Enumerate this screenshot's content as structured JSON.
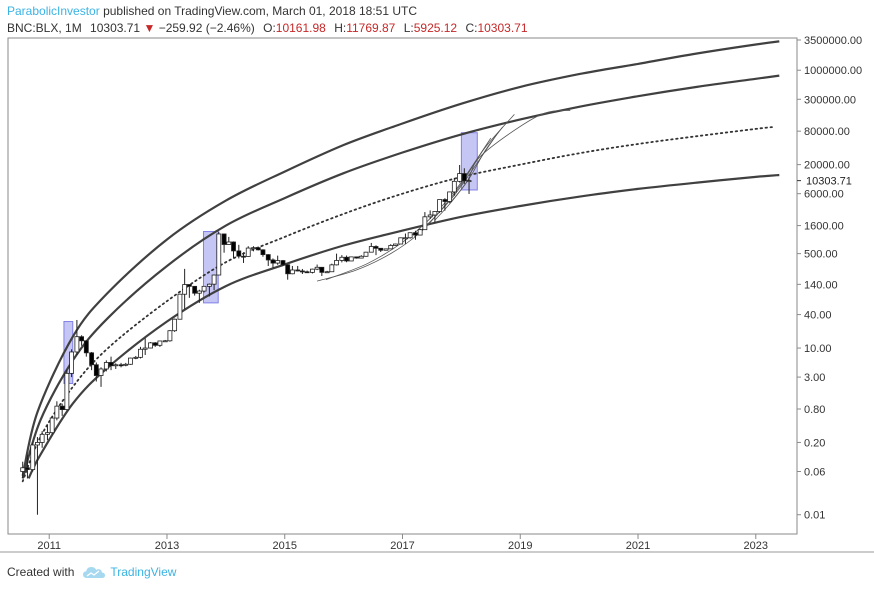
{
  "header": {
    "author": "ParabolicInvestor",
    "published_text": "published on TradingView.com, March 01, 2018 18:51 UTC",
    "symbol": "BNC:BLX, 1M",
    "last_price": "10303.71",
    "change_arrow": "▼",
    "change": "−259.92 (−2.46%)",
    "open_label": "O:",
    "open_value": "10161.98",
    "high_label": "H:",
    "high_value": "11769.87",
    "low_label": "L:",
    "low_value": "5925.12",
    "close_label": "C:",
    "close_value": "10303.71"
  },
  "footer": {
    "created_with": "Created with",
    "brand": "TradingView"
  },
  "colors": {
    "up": "#ffffff",
    "down": "#000000",
    "red_text": "#c62828",
    "brand": "#3bb3e4",
    "band": "#8080e8",
    "curve": "#404040"
  },
  "chart_data": {
    "type": "candlestick",
    "scale": "log",
    "x_axis": {
      "labels": [
        "2011",
        "2013",
        "2015",
        "2017",
        "2019",
        "2021",
        "2023"
      ],
      "range": [
        2010.3,
        2023.7
      ]
    },
    "y_axis": {
      "labels": [
        "3500000.00",
        "1000000.00",
        "300000.00",
        "80000.00",
        "20000.00",
        "6000.00",
        "1600.00",
        "500.00",
        "140.00",
        "40.00",
        "10.00",
        "3.00",
        "0.80",
        "0.20",
        "0.06",
        "0.01"
      ],
      "range": [
        0.0045,
        3800000
      ],
      "last_price_label": "10303.71",
      "last_price": 10303.71
    },
    "candles": [
      {
        "t": 2010.55,
        "o": 0.06,
        "h": 0.09,
        "l": 0.045,
        "c": 0.07
      },
      {
        "t": 2010.63,
        "o": 0.07,
        "h": 0.12,
        "l": 0.045,
        "c": 0.065
      },
      {
        "t": 2010.72,
        "o": 0.065,
        "h": 0.2,
        "l": 0.06,
        "c": 0.18
      },
      {
        "t": 2010.8,
        "o": 0.18,
        "h": 0.25,
        "l": 0.01,
        "c": 0.2
      },
      {
        "t": 2010.88,
        "o": 0.2,
        "h": 0.32,
        "l": 0.16,
        "c": 0.28
      },
      {
        "t": 2010.97,
        "o": 0.28,
        "h": 0.42,
        "l": 0.22,
        "c": 0.3
      },
      {
        "t": 2011.05,
        "o": 0.3,
        "h": 0.6,
        "l": 0.28,
        "c": 0.55
      },
      {
        "t": 2011.13,
        "o": 0.55,
        "h": 1.1,
        "l": 0.5,
        "c": 0.9
      },
      {
        "t": 2011.22,
        "o": 0.9,
        "h": 1.0,
        "l": 0.6,
        "c": 0.78
      },
      {
        "t": 2011.3,
        "o": 0.78,
        "h": 4.0,
        "l": 0.75,
        "c": 3.5
      },
      {
        "t": 2011.38,
        "o": 3.5,
        "h": 9.5,
        "l": 3.0,
        "c": 8.5
      },
      {
        "t": 2011.47,
        "o": 8.5,
        "h": 32.0,
        "l": 7.5,
        "c": 16.0
      },
      {
        "t": 2011.55,
        "o": 16.0,
        "h": 17.0,
        "l": 11.0,
        "c": 13.5
      },
      {
        "t": 2011.63,
        "o": 13.5,
        "h": 13.8,
        "l": 7.0,
        "c": 8.2
      },
      {
        "t": 2011.72,
        "o": 8.2,
        "h": 8.5,
        "l": 4.0,
        "c": 5.0
      },
      {
        "t": 2011.8,
        "o": 5.0,
        "h": 5.5,
        "l": 2.5,
        "c": 3.2
      },
      {
        "t": 2011.88,
        "o": 3.2,
        "h": 4.5,
        "l": 2.0,
        "c": 4.2
      },
      {
        "t": 2011.97,
        "o": 4.2,
        "h": 6.0,
        "l": 3.8,
        "c": 5.5
      },
      {
        "t": 2012.05,
        "o": 5.5,
        "h": 7.0,
        "l": 4.0,
        "c": 4.8
      },
      {
        "t": 2012.13,
        "o": 4.8,
        "h": 5.3,
        "l": 4.2,
        "c": 5.0
      },
      {
        "t": 2012.22,
        "o": 5.0,
        "h": 5.4,
        "l": 4.5,
        "c": 4.9
      },
      {
        "t": 2012.3,
        "o": 4.9,
        "h": 5.4,
        "l": 4.7,
        "c": 5.1
      },
      {
        "t": 2012.38,
        "o": 5.1,
        "h": 6.7,
        "l": 5.0,
        "c": 6.6
      },
      {
        "t": 2012.47,
        "o": 6.6,
        "h": 7.2,
        "l": 6.3,
        "c": 6.8
      },
      {
        "t": 2012.55,
        "o": 6.8,
        "h": 10.5,
        "l": 6.5,
        "c": 9.5
      },
      {
        "t": 2012.63,
        "o": 9.5,
        "h": 15.0,
        "l": 7.5,
        "c": 10.0
      },
      {
        "t": 2012.72,
        "o": 10.0,
        "h": 12.8,
        "l": 9.9,
        "c": 12.4
      },
      {
        "t": 2012.8,
        "o": 12.4,
        "h": 12.8,
        "l": 10.5,
        "c": 11.2
      },
      {
        "t": 2012.88,
        "o": 11.2,
        "h": 13.5,
        "l": 10.5,
        "c": 13.4
      },
      {
        "t": 2012.97,
        "o": 13.4,
        "h": 14.0,
        "l": 13.0,
        "c": 13.5
      },
      {
        "t": 2013.05,
        "o": 13.5,
        "h": 21.0,
        "l": 13.0,
        "c": 20.5
      },
      {
        "t": 2013.13,
        "o": 20.5,
        "h": 34.0,
        "l": 19.5,
        "c": 33.0
      },
      {
        "t": 2013.22,
        "o": 33.0,
        "h": 95.0,
        "l": 33.0,
        "c": 93.0
      },
      {
        "t": 2013.3,
        "o": 93.0,
        "h": 266.0,
        "l": 50.0,
        "c": 139.0
      },
      {
        "t": 2013.38,
        "o": 139.0,
        "h": 140.0,
        "l": 80.0,
        "c": 129.0
      },
      {
        "t": 2013.47,
        "o": 129.0,
        "h": 130.0,
        "l": 88.0,
        "c": 97.0
      },
      {
        "t": 2013.55,
        "o": 97.0,
        "h": 112.0,
        "l": 65.0,
        "c": 106.0
      },
      {
        "t": 2013.63,
        "o": 106.0,
        "h": 130.0,
        "l": 100.0,
        "c": 129.0
      },
      {
        "t": 2013.72,
        "o": 129.0,
        "h": 145.0,
        "l": 85.0,
        "c": 141.0
      },
      {
        "t": 2013.8,
        "o": 141.0,
        "h": 210.0,
        "l": 110.0,
        "c": 206.0
      },
      {
        "t": 2013.88,
        "o": 206.0,
        "h": 1240.0,
        "l": 205.0,
        "c": 1130.0
      },
      {
        "t": 2013.97,
        "o": 1130.0,
        "h": 1150.0,
        "l": 520.0,
        "c": 730.0
      },
      {
        "t": 2014.05,
        "o": 730.0,
        "h": 1000.0,
        "l": 720.0,
        "c": 810.0
      },
      {
        "t": 2014.13,
        "o": 810.0,
        "h": 830.0,
        "l": 420.0,
        "c": 560.0
      },
      {
        "t": 2014.22,
        "o": 560.0,
        "h": 720.0,
        "l": 410.0,
        "c": 450.0
      },
      {
        "t": 2014.3,
        "o": 450.0,
        "h": 530.0,
        "l": 340.0,
        "c": 445.0
      },
      {
        "t": 2014.38,
        "o": 445.0,
        "h": 680.0,
        "l": 440.0,
        "c": 630.0
      },
      {
        "t": 2014.47,
        "o": 630.0,
        "h": 680.0,
        "l": 550.0,
        "c": 640.0
      },
      {
        "t": 2014.55,
        "o": 640.0,
        "h": 650.0,
        "l": 570.0,
        "c": 585.0
      },
      {
        "t": 2014.63,
        "o": 585.0,
        "h": 600.0,
        "l": 440.0,
        "c": 480.0
      },
      {
        "t": 2014.72,
        "o": 480.0,
        "h": 490.0,
        "l": 300.0,
        "c": 385.0
      },
      {
        "t": 2014.8,
        "o": 385.0,
        "h": 410.0,
        "l": 275.0,
        "c": 338.0
      },
      {
        "t": 2014.88,
        "o": 338.0,
        "h": 460.0,
        "l": 315.0,
        "c": 375.0
      },
      {
        "t": 2014.97,
        "o": 375.0,
        "h": 385.0,
        "l": 300.0,
        "c": 315.0
      },
      {
        "t": 2015.05,
        "o": 315.0,
        "h": 320.0,
        "l": 170.0,
        "c": 217.0
      },
      {
        "t": 2015.13,
        "o": 217.0,
        "h": 300.0,
        "l": 213.0,
        "c": 254.0
      },
      {
        "t": 2015.22,
        "o": 254.0,
        "h": 300.0,
        "l": 240.0,
        "c": 244.0
      },
      {
        "t": 2015.3,
        "o": 244.0,
        "h": 265.0,
        "l": 215.0,
        "c": 236.0
      },
      {
        "t": 2015.38,
        "o": 236.0,
        "h": 248.0,
        "l": 227.0,
        "c": 230.0
      },
      {
        "t": 2015.47,
        "o": 230.0,
        "h": 268.0,
        "l": 220.0,
        "c": 263.0
      },
      {
        "t": 2015.55,
        "o": 263.0,
        "h": 318.0,
        "l": 253.0,
        "c": 284.0
      },
      {
        "t": 2015.63,
        "o": 284.0,
        "h": 286.0,
        "l": 198.0,
        "c": 230.0
      },
      {
        "t": 2015.72,
        "o": 230.0,
        "h": 245.0,
        "l": 225.0,
        "c": 236.0
      },
      {
        "t": 2015.8,
        "o": 236.0,
        "h": 330.0,
        "l": 236.0,
        "c": 314.0
      },
      {
        "t": 2015.88,
        "o": 314.0,
        "h": 500.0,
        "l": 306.0,
        "c": 377.0
      },
      {
        "t": 2015.97,
        "o": 377.0,
        "h": 470.0,
        "l": 348.0,
        "c": 430.0
      },
      {
        "t": 2016.05,
        "o": 430.0,
        "h": 462.0,
        "l": 350.0,
        "c": 369.0
      },
      {
        "t": 2016.13,
        "o": 369.0,
        "h": 440.0,
        "l": 368.0,
        "c": 437.0
      },
      {
        "t": 2016.22,
        "o": 437.0,
        "h": 440.0,
        "l": 406.0,
        "c": 416.0
      },
      {
        "t": 2016.3,
        "o": 416.0,
        "h": 469.0,
        "l": 412.0,
        "c": 448.0
      },
      {
        "t": 2016.38,
        "o": 448.0,
        "h": 540.0,
        "l": 440.0,
        "c": 531.0
      },
      {
        "t": 2016.47,
        "o": 531.0,
        "h": 780.0,
        "l": 525.0,
        "c": 672.0
      },
      {
        "t": 2016.55,
        "o": 672.0,
        "h": 705.0,
        "l": 470.0,
        "c": 624.0
      },
      {
        "t": 2016.63,
        "o": 624.0,
        "h": 630.0,
        "l": 535.0,
        "c": 575.0
      },
      {
        "t": 2016.72,
        "o": 575.0,
        "h": 612.0,
        "l": 570.0,
        "c": 609.0
      },
      {
        "t": 2016.8,
        "o": 609.0,
        "h": 740.0,
        "l": 605.0,
        "c": 701.0
      },
      {
        "t": 2016.88,
        "o": 701.0,
        "h": 755.0,
        "l": 690.0,
        "c": 745.0
      },
      {
        "t": 2016.97,
        "o": 745.0,
        "h": 980.0,
        "l": 740.0,
        "c": 963.0
      },
      {
        "t": 2017.05,
        "o": 963.0,
        "h": 1150.0,
        "l": 750.0,
        "c": 965.0
      },
      {
        "t": 2017.13,
        "o": 965.0,
        "h": 1200.0,
        "l": 930.0,
        "c": 1190.0
      },
      {
        "t": 2017.22,
        "o": 1190.0,
        "h": 1290.0,
        "l": 890.0,
        "c": 1080.0
      },
      {
        "t": 2017.3,
        "o": 1080.0,
        "h": 1400.0,
        "l": 1060.0,
        "c": 1350.0
      },
      {
        "t": 2017.38,
        "o": 1350.0,
        "h": 2800.0,
        "l": 1350.0,
        "c": 2300.0
      },
      {
        "t": 2017.47,
        "o": 2300.0,
        "h": 3000.0,
        "l": 2100.0,
        "c": 2480.0
      },
      {
        "t": 2017.55,
        "o": 2480.0,
        "h": 2900.0,
        "l": 1800.0,
        "c": 2870.0
      },
      {
        "t": 2017.63,
        "o": 2870.0,
        "h": 4700.0,
        "l": 2700.0,
        "c": 4700.0
      },
      {
        "t": 2017.72,
        "o": 4700.0,
        "h": 4980.0,
        "l": 2970.0,
        "c": 4340.0
      },
      {
        "t": 2017.8,
        "o": 4340.0,
        "h": 6450.0,
        "l": 4100.0,
        "c": 6450.0
      },
      {
        "t": 2017.88,
        "o": 6450.0,
        "h": 11500.0,
        "l": 5500.0,
        "c": 10000.0
      },
      {
        "t": 2017.97,
        "o": 10000.0,
        "h": 19700.0,
        "l": 9500.0,
        "c": 13800.0
      },
      {
        "t": 2018.05,
        "o": 13800.0,
        "h": 17200.0,
        "l": 9000.0,
        "c": 10200.0
      },
      {
        "t": 2018.13,
        "o": 10161.98,
        "h": 11769.87,
        "l": 5925.12,
        "c": 10303.71
      }
    ],
    "highlight_boxes": [
      {
        "t0": 2011.25,
        "t1": 2011.4,
        "low": 2.3,
        "high": 30.0
      },
      {
        "t0": 2013.62,
        "t1": 2013.87,
        "low": 65.0,
        "high": 1250.0
      },
      {
        "t0": 2018.0,
        "t1": 2018.27,
        "low": 7000.0,
        "high": 75000.0
      }
    ],
    "curves": [
      {
        "name": "outer-upper-band",
        "style": "solid-thick",
        "points": [
          [
            2010.55,
            0.05
          ],
          [
            2010.8,
            0.7
          ],
          [
            2011.4,
            16
          ],
          [
            2012,
            100
          ],
          [
            2013,
            900
          ],
          [
            2014,
            4500
          ],
          [
            2015,
            15000
          ],
          [
            2016,
            45000
          ],
          [
            2017,
            110000
          ],
          [
            2018,
            250000
          ],
          [
            2019,
            500000
          ],
          [
            2020,
            850000
          ],
          [
            2021,
            1300000
          ],
          [
            2022,
            2000000
          ],
          [
            2023,
            2900000
          ],
          [
            2023.4,
            3300000
          ]
        ]
      },
      {
        "name": "inner-upper-band",
        "style": "solid-thick",
        "points": [
          [
            2010.55,
            0.045
          ],
          [
            2010.85,
            0.5
          ],
          [
            2011.4,
            6
          ],
          [
            2012,
            35
          ],
          [
            2013,
            300
          ],
          [
            2014,
            1600
          ],
          [
            2015,
            5000
          ],
          [
            2016,
            14000
          ],
          [
            2017,
            33000
          ],
          [
            2018,
            70000
          ],
          [
            2019,
            130000
          ],
          [
            2020,
            220000
          ],
          [
            2021,
            340000
          ],
          [
            2022,
            500000
          ],
          [
            2023,
            700000
          ],
          [
            2023.4,
            800000
          ]
        ]
      },
      {
        "name": "median-trend",
        "style": "dotted",
        "points": [
          [
            2010.55,
            0.04
          ],
          [
            2010.85,
            0.25
          ],
          [
            2011.4,
            2.0
          ],
          [
            2012,
            10
          ],
          [
            2013,
            70
          ],
          [
            2014,
            350
          ],
          [
            2015,
            1000
          ],
          [
            2016,
            2600
          ],
          [
            2017,
            6000
          ],
          [
            2018,
            12000
          ],
          [
            2019,
            20000
          ],
          [
            2020,
            32000
          ],
          [
            2021,
            47000
          ],
          [
            2022,
            65000
          ],
          [
            2023,
            88000
          ],
          [
            2023.3,
            95000
          ]
        ]
      },
      {
        "name": "lower-support-band",
        "style": "solid-thick",
        "points": [
          [
            2010.65,
            0.045
          ],
          [
            2010.85,
            0.12
          ],
          [
            2011.4,
            1.0
          ],
          [
            2012,
            4.5
          ],
          [
            2013,
            30
          ],
          [
            2014,
            130
          ],
          [
            2015,
            320
          ],
          [
            2016,
            700
          ],
          [
            2017,
            1300
          ],
          [
            2018,
            2300
          ],
          [
            2019,
            3600
          ],
          [
            2020,
            5300
          ],
          [
            2021,
            7300
          ],
          [
            2022,
            9500
          ],
          [
            2023,
            12000
          ],
          [
            2023.4,
            13000
          ]
        ]
      },
      {
        "name": "fan-line-1",
        "style": "solid-thin",
        "points": [
          [
            2015.55,
            160
          ],
          [
            2016.2,
            250
          ],
          [
            2016.8,
            500
          ],
          [
            2017.3,
            1200
          ],
          [
            2017.7,
            3500
          ],
          [
            2018.0,
            9000
          ],
          [
            2018.4,
            40000
          ],
          [
            2018.9,
            160000
          ]
        ]
      },
      {
        "name": "fan-line-2",
        "style": "solid-thin",
        "points": [
          [
            2015.7,
            170
          ],
          [
            2016.4,
            330
          ],
          [
            2017,
            800
          ],
          [
            2017.5,
            2300
          ],
          [
            2017.9,
            7000
          ],
          [
            2018.2,
            20000
          ],
          [
            2018.5,
            60000
          ]
        ]
      },
      {
        "name": "fan-line-3",
        "style": "solid-thin",
        "points": [
          [
            2017.2,
            1000
          ],
          [
            2017.6,
            2600
          ],
          [
            2017.9,
            6000
          ],
          [
            2018.25,
            20000
          ],
          [
            2018.6,
            70000
          ]
        ]
      },
      {
        "name": "fan-line-4",
        "style": "solid-thin",
        "points": [
          [
            2017.55,
            2000
          ],
          [
            2017.85,
            4500
          ],
          [
            2018.15,
            12000
          ],
          [
            2018.4,
            35000
          ],
          [
            2018.7,
            95000
          ]
        ]
      },
      {
        "name": "fan-line-5",
        "style": "solid-thin",
        "points": [
          [
            2017.8,
            4000
          ],
          [
            2018.1,
            10000
          ],
          [
            2018.35,
            30000
          ],
          [
            2019.3,
            150000
          ],
          [
            2019.85,
            190000
          ]
        ]
      }
    ]
  }
}
